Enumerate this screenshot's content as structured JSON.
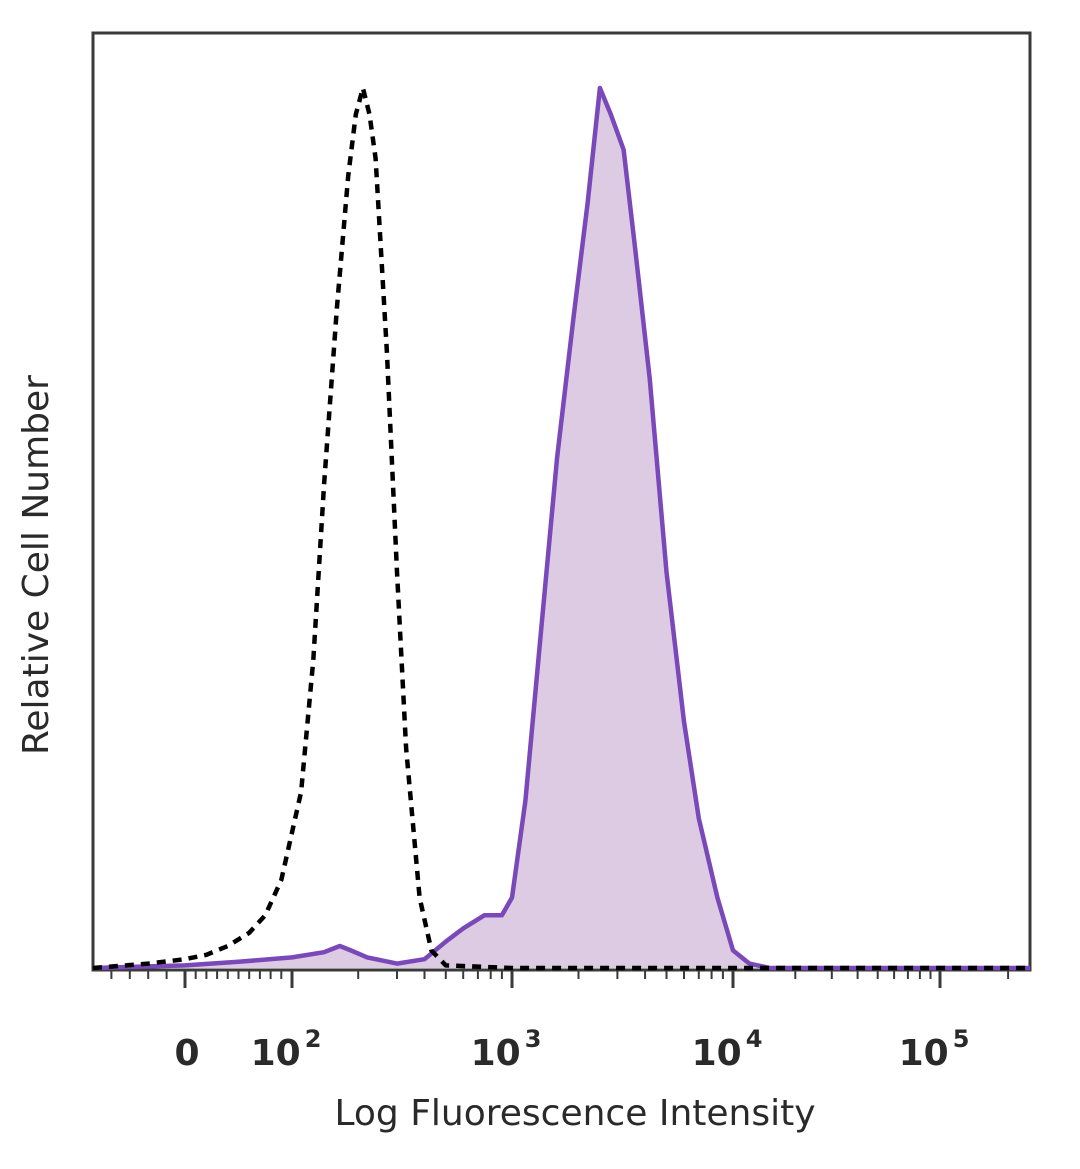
{
  "chart_data": {
    "type": "area",
    "title": "",
    "xlabel": "Log Fluorescence Intensity",
    "ylabel": "Relative Cell Number",
    "x_scale": "biexponential (log above 10^2)",
    "xlim": [
      -50,
      250000
    ],
    "ylim": [
      0,
      1
    ],
    "x_ticks": [
      {
        "value": 0,
        "base": "0",
        "exp": ""
      },
      {
        "value": 100,
        "base": "10",
        "exp": "2"
      },
      {
        "value": 1000,
        "base": "10",
        "exp": "3"
      },
      {
        "value": 10000,
        "base": "10",
        "exp": "4"
      },
      {
        "value": 100000,
        "base": "10",
        "exp": "5"
      }
    ],
    "grid": false,
    "legend": "none",
    "series": [
      {
        "style": "dashed black line, no fill",
        "color": "#000000",
        "x": [
          -50,
          -20,
          0,
          20,
          40,
          60,
          75,
          90,
          110,
          125,
          140,
          160,
          180,
          195,
          210,
          225,
          240,
          270,
          300,
          330,
          380,
          430,
          500,
          1000,
          10000,
          100000,
          250000
        ],
        "y": [
          0,
          0.005,
          0.01,
          0.015,
          0.025,
          0.04,
          0.06,
          0.1,
          0.2,
          0.35,
          0.55,
          0.75,
          0.9,
          0.97,
          1.0,
          0.97,
          0.92,
          0.7,
          0.45,
          0.25,
          0.08,
          0.02,
          0.003,
          0,
          0,
          0,
          0
        ]
      },
      {
        "style": "purple line with light purple fill",
        "color": "#7a48b8",
        "fill": "#dccbe2",
        "x": [
          -50,
          0,
          50,
          100,
          140,
          165,
          185,
          220,
          300,
          400,
          500,
          600,
          750,
          900,
          1000,
          1150,
          1350,
          1600,
          1900,
          2200,
          2500,
          2800,
          3200,
          3600,
          4200,
          5000,
          6000,
          7000,
          8500,
          10000,
          12000,
          15000,
          30000,
          100000,
          250000
        ],
        "y": [
          0,
          0.003,
          0.007,
          0.012,
          0.018,
          0.025,
          0.02,
          0.012,
          0.005,
          0.01,
          0.03,
          0.045,
          0.06,
          0.06,
          0.08,
          0.19,
          0.38,
          0.58,
          0.74,
          0.87,
          1.0,
          0.97,
          0.93,
          0.82,
          0.67,
          0.45,
          0.28,
          0.17,
          0.08,
          0.02,
          0.005,
          0,
          0,
          0,
          0
        ]
      }
    ],
    "colors": {
      "axis": "#3a3a3a",
      "text": "#2a2a2a",
      "stained_line": "#7a48b8",
      "stained_fill": "#dccbe2",
      "control_line": "#000000"
    }
  }
}
